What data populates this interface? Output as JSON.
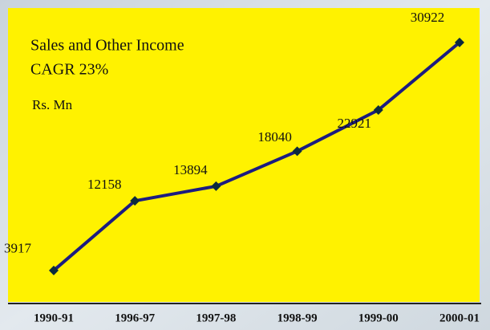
{
  "chart_data": {
    "type": "line",
    "title": "Sales and Other Income",
    "subtitle": "CAGR 23%",
    "y_label": "Rs. Mn",
    "categories": [
      "1990-91",
      "1996-97",
      "1997-98",
      "1998-99",
      "1999-00",
      "2000-01"
    ],
    "values": [
      3917,
      12158,
      13894,
      18040,
      22921,
      30922
    ],
    "color": "#1c1c80",
    "marker_color": "#0b2a3c",
    "ylim": [
      0,
      35000
    ]
  }
}
